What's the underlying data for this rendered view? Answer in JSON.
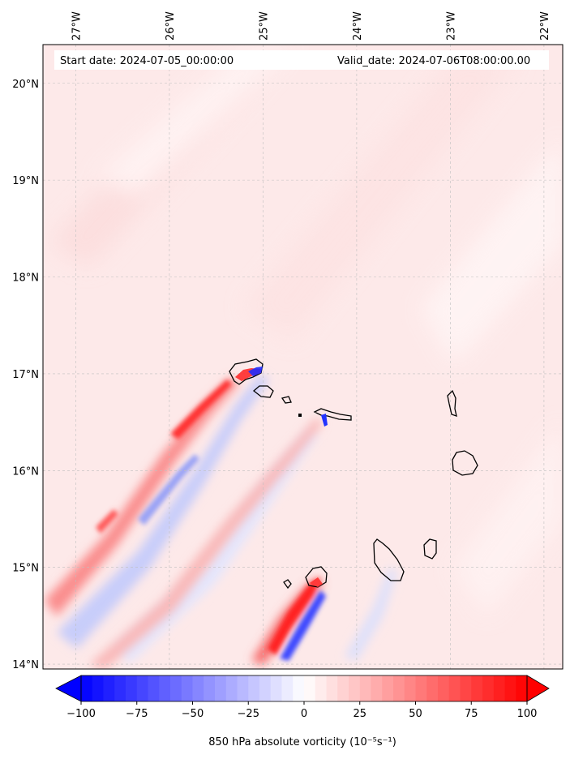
{
  "header": {
    "start_date": "Start date: 2024-07-05_00:00:00",
    "valid_date": "Valid_date: 2024-07-06T08:00:00.00"
  },
  "map": {
    "lon_labels": [
      "27°W",
      "26°W",
      "25°W",
      "24°W",
      "23°W",
      "22°W"
    ],
    "lat_labels": [
      "20°N",
      "19°N",
      "18°N",
      "17°N",
      "16°N",
      "15°N",
      "14°N"
    ],
    "lon_values": [
      -27,
      -26,
      -25,
      -24,
      -23,
      -22
    ],
    "lat_values": [
      20,
      19,
      18,
      17,
      16,
      15,
      14
    ],
    "lon_range": [
      -27.35,
      -21.8
    ],
    "lat_range": [
      13.95,
      20.4
    ]
  },
  "colorbar": {
    "min": -100,
    "max": 100,
    "levels": 40,
    "ticks": [
      "−100",
      "−75",
      "−50",
      "−25",
      "0",
      "25",
      "50",
      "75",
      "100"
    ],
    "tick_values": [
      -100,
      -75,
      -50,
      -25,
      0,
      25,
      50,
      75,
      100
    ],
    "extend": "both",
    "label": "850 hPa absolute vorticity (10⁻⁵s⁻¹)",
    "colors": {
      "negative": "#0000ff",
      "zero": "#ffffff",
      "positive": "#ff0000"
    }
  }
}
